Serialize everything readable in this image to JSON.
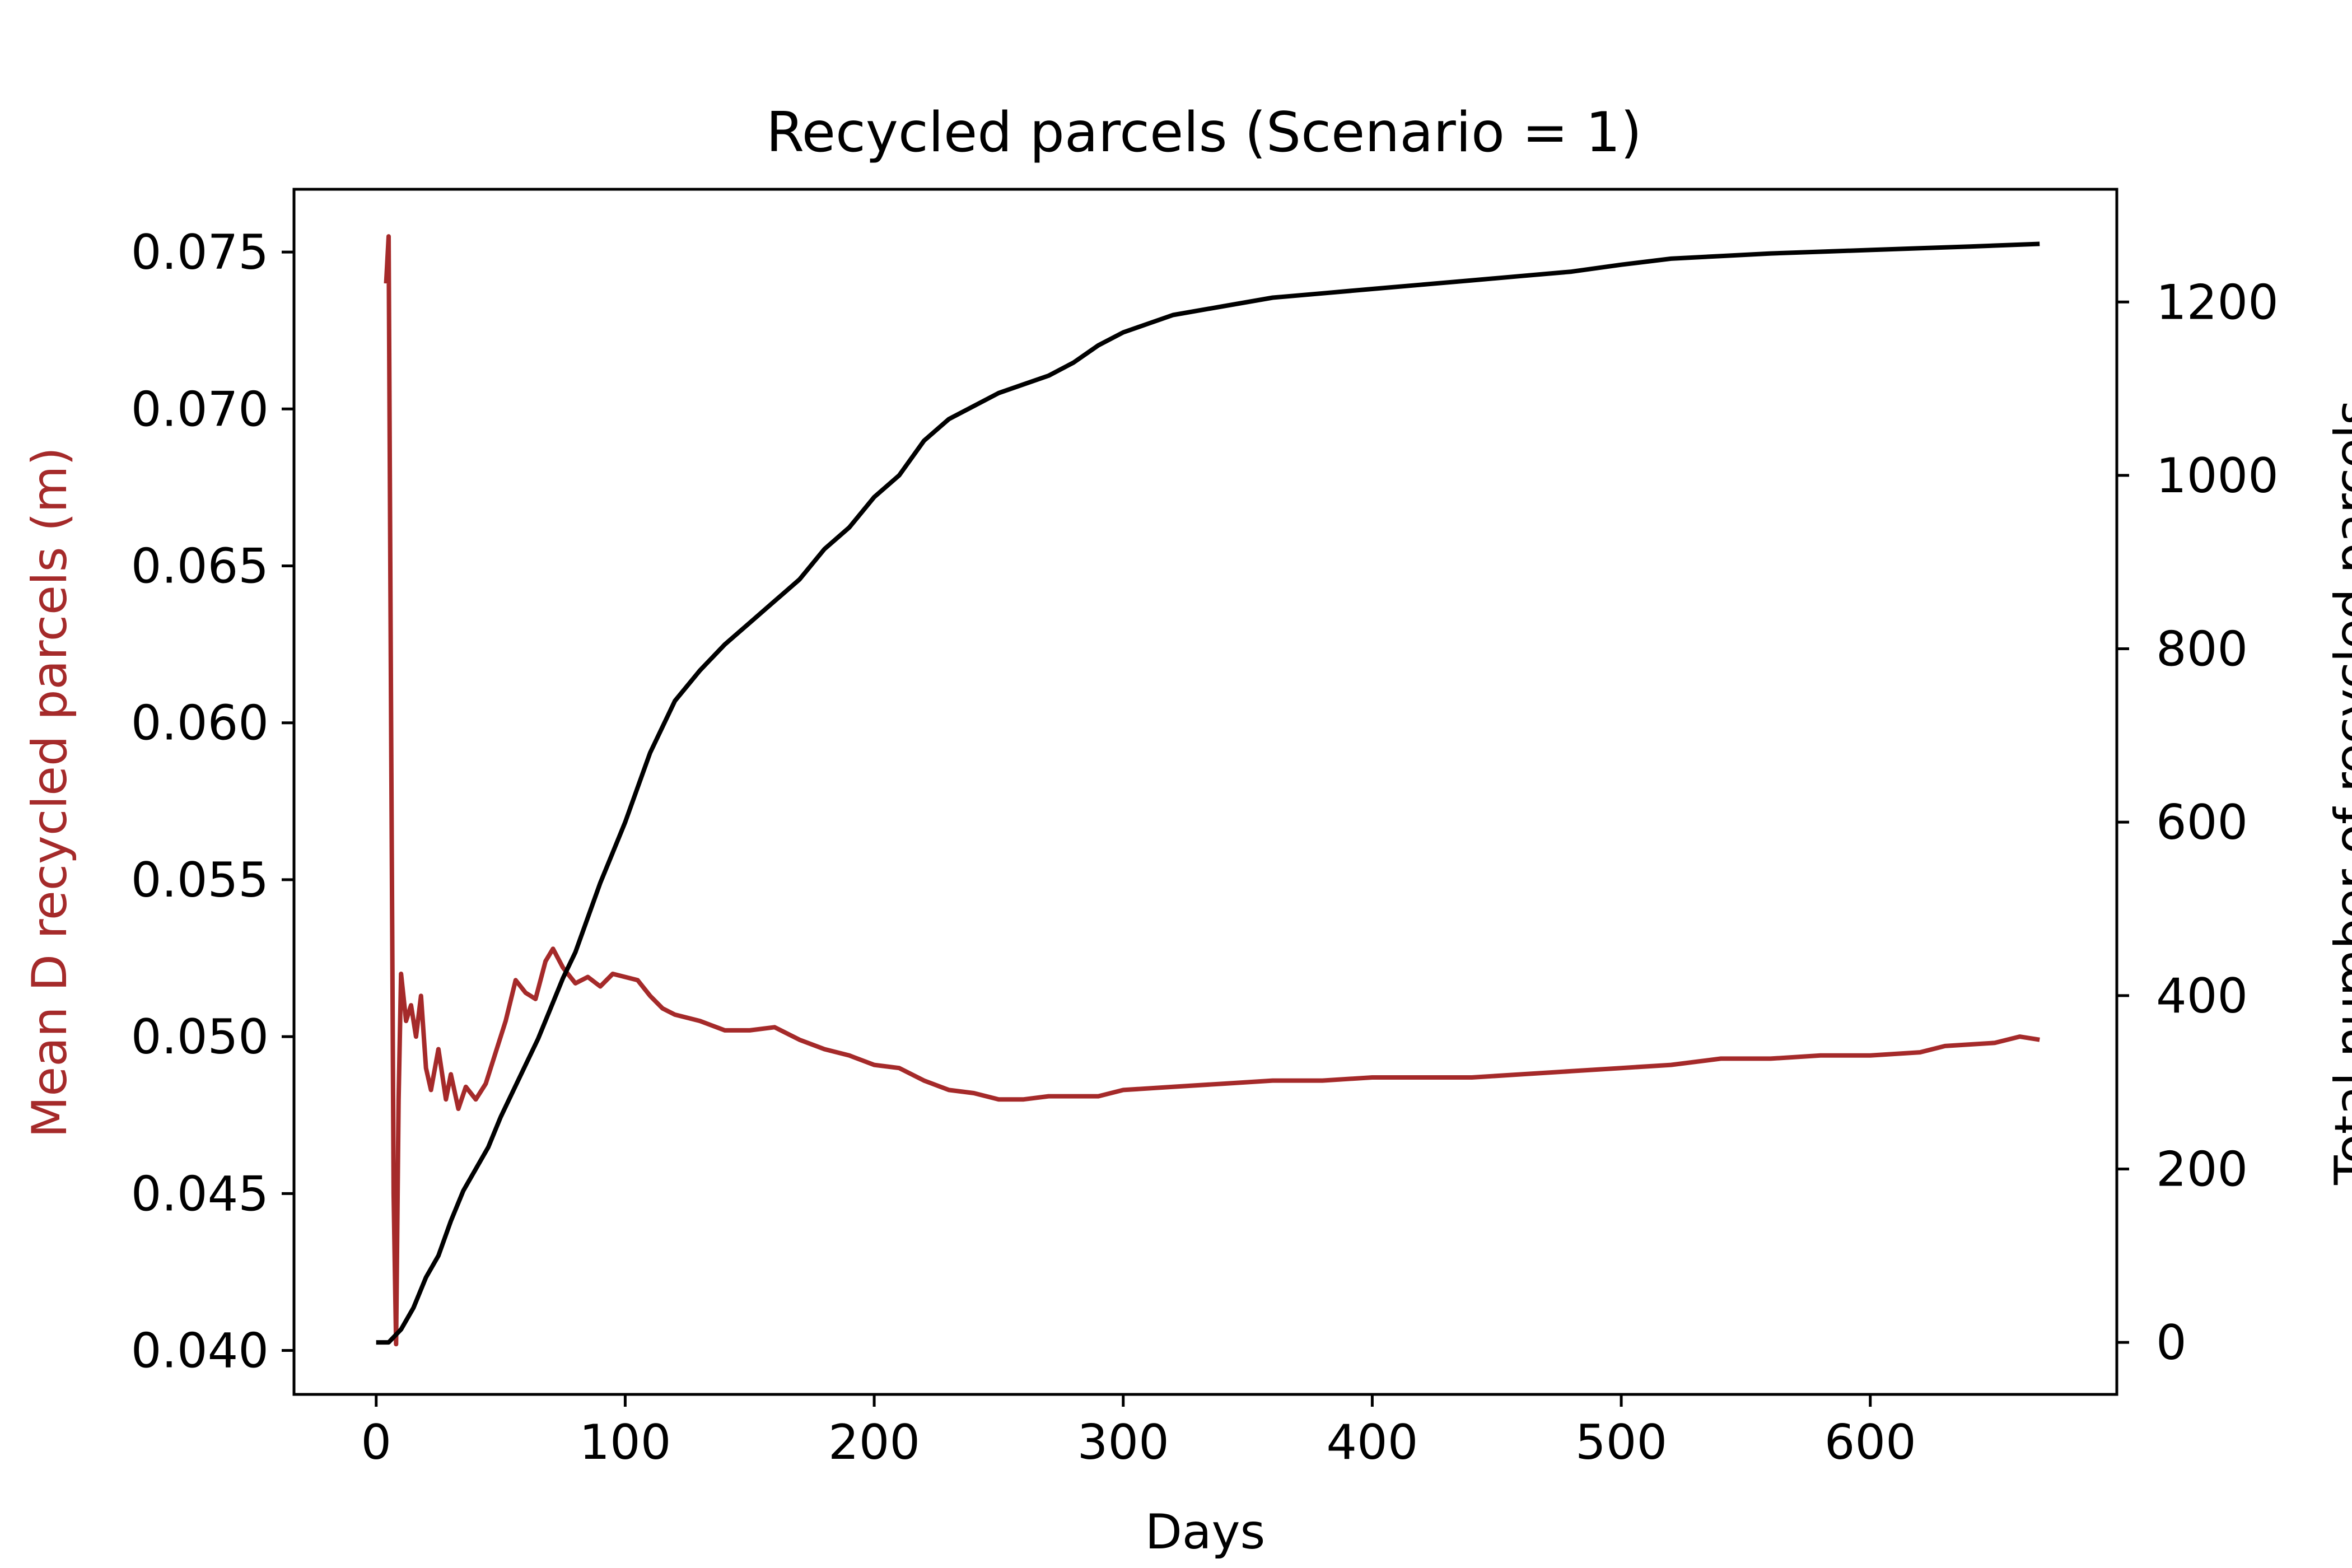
{
  "chart_data": {
    "type": "line",
    "title": "Recycled parcels (Scenario = 1)",
    "xlabel": "Days",
    "ylabel_left": "Mean D recycled parcels (m)",
    "ylabel_right": "Total number of recycled parcels",
    "xlim": [
      -33,
      699
    ],
    "ylim_left": [
      0.0386,
      0.077
    ],
    "ylim_right": [
      -60,
      1330
    ],
    "xticks": [
      0,
      100,
      200,
      300,
      400,
      500,
      600
    ],
    "xtick_labels": [
      "0",
      "100",
      "200",
      "300",
      "400",
      "500",
      "600"
    ],
    "yticks_left": [
      0.04,
      0.045,
      0.05,
      0.055,
      0.06,
      0.065,
      0.07,
      0.075
    ],
    "ytick_labels_left": [
      "0.040",
      "0.045",
      "0.050",
      "0.055",
      "0.060",
      "0.065",
      "0.070",
      "0.075"
    ],
    "yticks_right": [
      0,
      200,
      400,
      600,
      800,
      1000,
      1200
    ],
    "ytick_labels_right": [
      "0",
      "200",
      "400",
      "600",
      "800",
      "1000",
      "1200"
    ],
    "grid": false,
    "colors": {
      "mean_d": "#a52a2a",
      "total": "#000000",
      "left_label": "#a52a2a"
    },
    "series": [
      {
        "axis": "left",
        "color": "#a52a2a",
        "points": [
          [
            4,
            0.074
          ],
          [
            5,
            0.0755
          ],
          [
            6,
            0.06
          ],
          [
            7,
            0.045
          ],
          [
            8,
            0.0402
          ],
          [
            9,
            0.048
          ],
          [
            10,
            0.052
          ],
          [
            12,
            0.0505
          ],
          [
            14,
            0.051
          ],
          [
            16,
            0.05
          ],
          [
            18,
            0.0513
          ],
          [
            20,
            0.049
          ],
          [
            22,
            0.0483
          ],
          [
            25,
            0.0496
          ],
          [
            28,
            0.048
          ],
          [
            30,
            0.0488
          ],
          [
            33,
            0.0477
          ],
          [
            36,
            0.0484
          ],
          [
            40,
            0.048
          ],
          [
            44,
            0.0485
          ],
          [
            48,
            0.0495
          ],
          [
            52,
            0.0505
          ],
          [
            56,
            0.0518
          ],
          [
            60,
            0.0514
          ],
          [
            64,
            0.0512
          ],
          [
            68,
            0.0524
          ],
          [
            71,
            0.0528
          ],
          [
            75,
            0.0522
          ],
          [
            80,
            0.0517
          ],
          [
            85,
            0.0519
          ],
          [
            90,
            0.0516
          ],
          [
            95,
            0.052
          ],
          [
            100,
            0.0519
          ],
          [
            105,
            0.0518
          ],
          [
            110,
            0.0513
          ],
          [
            115,
            0.0509
          ],
          [
            120,
            0.0507
          ],
          [
            130,
            0.0505
          ],
          [
            140,
            0.0502
          ],
          [
            150,
            0.0502
          ],
          [
            160,
            0.0503
          ],
          [
            170,
            0.0499
          ],
          [
            180,
            0.0496
          ],
          [
            190,
            0.0494
          ],
          [
            200,
            0.0491
          ],
          [
            210,
            0.049
          ],
          [
            220,
            0.0486
          ],
          [
            230,
            0.0483
          ],
          [
            240,
            0.0482
          ],
          [
            250,
            0.048
          ],
          [
            260,
            0.048
          ],
          [
            270,
            0.0481
          ],
          [
            280,
            0.0481
          ],
          [
            290,
            0.0481
          ],
          [
            300,
            0.0483
          ],
          [
            320,
            0.0484
          ],
          [
            340,
            0.0485
          ],
          [
            360,
            0.0486
          ],
          [
            380,
            0.0486
          ],
          [
            400,
            0.0487
          ],
          [
            420,
            0.0487
          ],
          [
            440,
            0.0487
          ],
          [
            460,
            0.0488
          ],
          [
            480,
            0.0489
          ],
          [
            500,
            0.049
          ],
          [
            520,
            0.0491
          ],
          [
            540,
            0.0493
          ],
          [
            560,
            0.0493
          ],
          [
            580,
            0.0494
          ],
          [
            600,
            0.0494
          ],
          [
            620,
            0.0495
          ],
          [
            630,
            0.0497
          ],
          [
            650,
            0.0498
          ],
          [
            660,
            0.05
          ],
          [
            668,
            0.0499
          ]
        ]
      },
      {
        "axis": "right",
        "color": "#000000",
        "points": [
          [
            0,
            0
          ],
          [
            5,
            0
          ],
          [
            10,
            15
          ],
          [
            15,
            40
          ],
          [
            20,
            75
          ],
          [
            25,
            100
          ],
          [
            30,
            140
          ],
          [
            35,
            175
          ],
          [
            40,
            200
          ],
          [
            45,
            225
          ],
          [
            50,
            260
          ],
          [
            55,
            290
          ],
          [
            60,
            320
          ],
          [
            65,
            350
          ],
          [
            70,
            385
          ],
          [
            75,
            420
          ],
          [
            80,
            450
          ],
          [
            85,
            490
          ],
          [
            90,
            530
          ],
          [
            95,
            565
          ],
          [
            100,
            600
          ],
          [
            105,
            640
          ],
          [
            110,
            680
          ],
          [
            115,
            710
          ],
          [
            120,
            740
          ],
          [
            130,
            775
          ],
          [
            140,
            805
          ],
          [
            150,
            830
          ],
          [
            160,
            855
          ],
          [
            170,
            880
          ],
          [
            180,
            915
          ],
          [
            190,
            940
          ],
          [
            200,
            975
          ],
          [
            210,
            1000
          ],
          [
            220,
            1040
          ],
          [
            230,
            1065
          ],
          [
            240,
            1080
          ],
          [
            250,
            1095
          ],
          [
            260,
            1105
          ],
          [
            270,
            1115
          ],
          [
            280,
            1130
          ],
          [
            290,
            1150
          ],
          [
            300,
            1165
          ],
          [
            310,
            1175
          ],
          [
            320,
            1185
          ],
          [
            340,
            1195
          ],
          [
            360,
            1205
          ],
          [
            380,
            1210
          ],
          [
            400,
            1215
          ],
          [
            420,
            1220
          ],
          [
            440,
            1225
          ],
          [
            460,
            1230
          ],
          [
            480,
            1235
          ],
          [
            500,
            1243
          ],
          [
            520,
            1250
          ],
          [
            540,
            1253
          ],
          [
            560,
            1256
          ],
          [
            580,
            1258
          ],
          [
            600,
            1260
          ],
          [
            620,
            1262
          ],
          [
            640,
            1264
          ],
          [
            668,
            1267
          ]
        ]
      }
    ]
  }
}
